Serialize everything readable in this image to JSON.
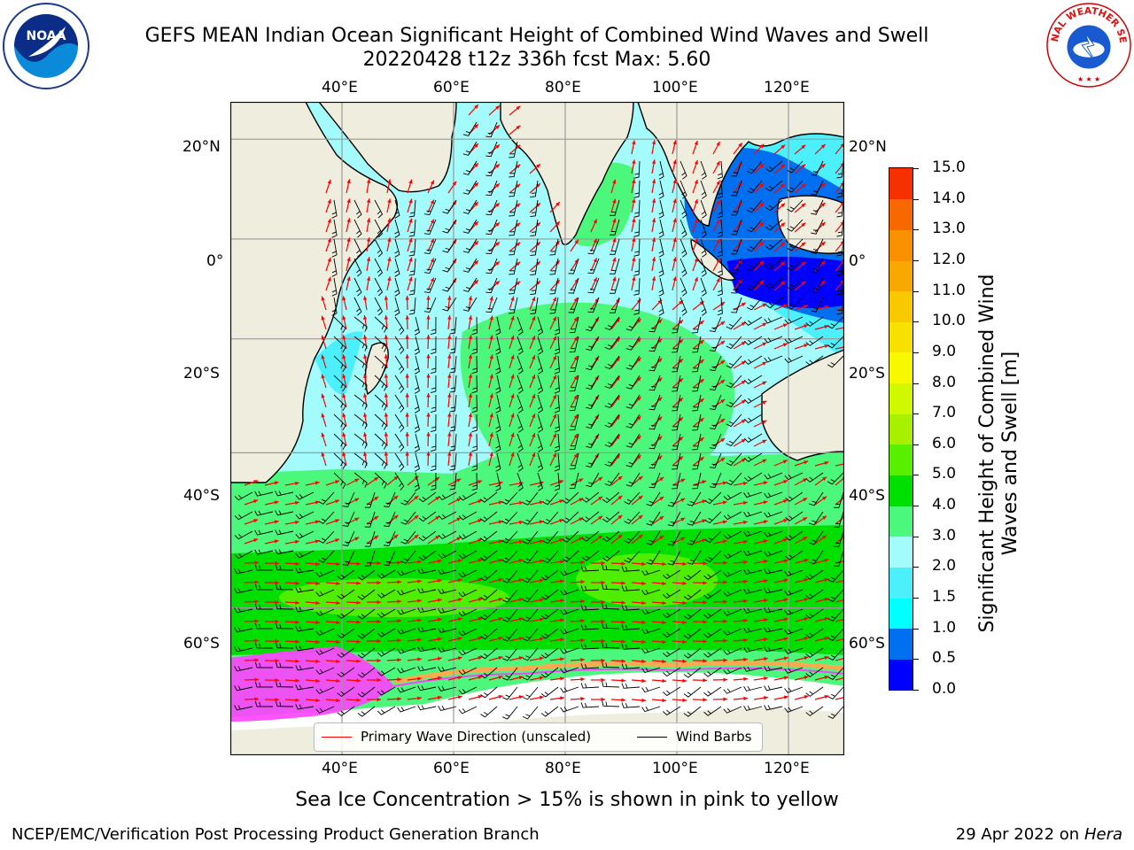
{
  "title": {
    "line1": "GEFS MEAN Indian Ocean Significant Height of Combined Wind Waves and Swell",
    "line2": "20220428 t12z 336h fcst   Max: 5.60"
  },
  "logos": {
    "left": "NOAA",
    "right": "NATIONAL WEATHER SERVICE"
  },
  "map": {
    "lon_labels": [
      "40°E",
      "60°E",
      "80°E",
      "100°E",
      "120°E"
    ],
    "lat_labels": [
      "20°N",
      "0°",
      "20°S",
      "40°S",
      "60°S"
    ],
    "lon_values": [
      40,
      60,
      80,
      100,
      120
    ],
    "lat_values": [
      20,
      0,
      -20,
      -40,
      -60
    ],
    "lon_range": [
      20,
      130
    ],
    "lat_range": [
      -72,
      27
    ],
    "colors": {
      "land": "#efedde",
      "ocean_low": "#a3fbfb",
      "ocean_mid": "#4cf87b",
      "ocean_high": "#00e000",
      "ocean_peak": "#58f000",
      "shallow": "#4cf0fc",
      "deep_blue": "#0070f0",
      "ice": "#ff40ff",
      "ice_edge": "#ffa850",
      "wave_arrow": "#ff0000",
      "wind_barb": "#000000"
    }
  },
  "legend": {
    "wave_label": "Primary Wave Direction (unscaled)",
    "barb_label": "Wind Barbs"
  },
  "colorbar": {
    "label": "Significant Height of Combined Wind Waves and Swell [m]",
    "ticks": [
      "0.0",
      "0.5",
      "1.0",
      "1.5",
      "2.0",
      "3.0",
      "4.0",
      "5.0",
      "6.0",
      "7.0",
      "8.0",
      "9.0",
      "10.0",
      "11.0",
      "12.0",
      "13.0",
      "14.0",
      "15.0"
    ],
    "colors": [
      "#0000ff",
      "#0070f0",
      "#00ffff",
      "#4cf0fc",
      "#a3fbfb",
      "#4cf87b",
      "#00e000",
      "#58f000",
      "#a8f000",
      "#d0f800",
      "#f8f800",
      "#f8e000",
      "#f8c800",
      "#f8a800",
      "#f89000",
      "#f86800",
      "#f83000",
      "#f80000"
    ]
  },
  "caption": "Sea Ice Concentration > 15% is shown in pink to yellow",
  "footer": {
    "left": "NCEP/EMC/Verification Post Processing Product Generation Branch",
    "right_date": "29 Apr 2022 on ",
    "right_host": "Hera"
  }
}
